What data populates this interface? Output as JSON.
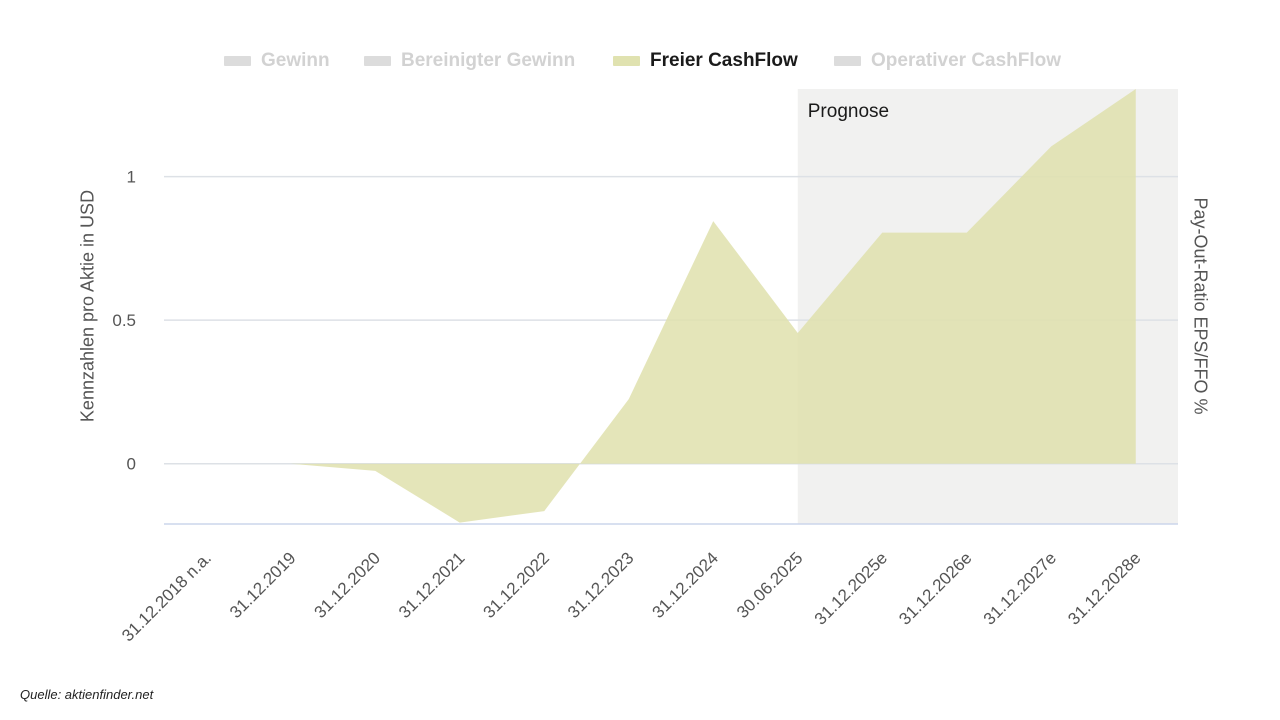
{
  "chart_data": {
    "type": "area",
    "categories": [
      "31.12.2018 n.a.",
      "31.12.2019",
      "31.12.2020",
      "31.12.2021",
      "31.12.2022",
      "31.12.2023",
      "31.12.2024",
      "30.06.2025",
      "31.12.2025e",
      "31.12.2026e",
      "31.12.2027e",
      "31.12.2028e"
    ],
    "series": [
      {
        "name": "Freier CashFlow",
        "values": [
          null,
          0.0,
          -0.025,
          -0.205,
          -0.165,
          0.225,
          0.845,
          0.455,
          0.805,
          0.805,
          1.105,
          1.305
        ]
      }
    ],
    "legend": [
      {
        "label": "Gewinn",
        "active": false
      },
      {
        "label": "Bereinigter Gewinn",
        "active": false
      },
      {
        "label": "Freier CashFlow",
        "active": true
      },
      {
        "label": "Operativer CashFlow",
        "active": false
      }
    ],
    "ylabel": "Kennzahlen pro Aktie in USD",
    "y2label": "Pay-Out-Ratio EPS/FFO %",
    "ylim": [
      -0.21,
      1.305
    ],
    "yticks": [
      0,
      0.5,
      1
    ],
    "ytick_labels": [
      "0",
      "0.5",
      "1"
    ],
    "forecast_label": "Prognose",
    "forecast_start": "30.06.2025",
    "colors": {
      "area": "#dfe0ad",
      "forecast_bg": "#f1f1f0",
      "grid": "#dde1e6",
      "axis": "#ccd6eb"
    }
  },
  "source": "Quelle: aktienfinder.net"
}
